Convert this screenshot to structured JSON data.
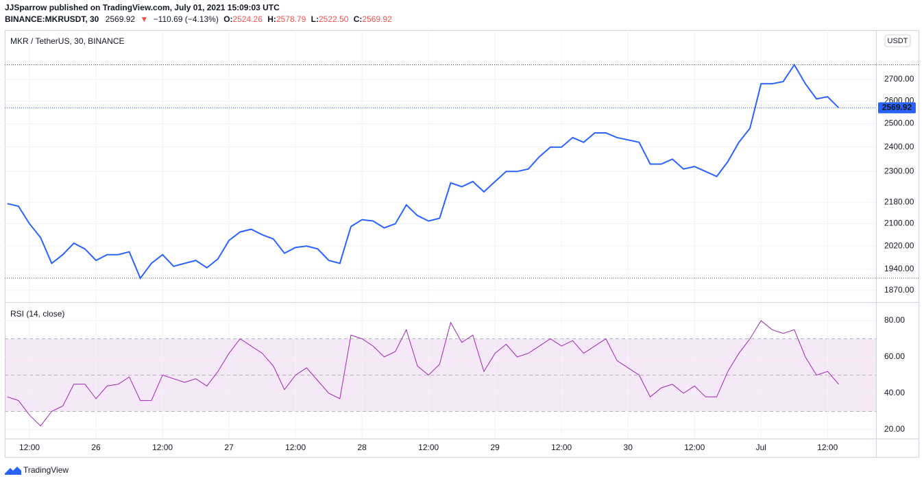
{
  "header": {
    "publisher": "JJSparrow published on TradingView.com, July 01, 2021 15:09:03 UTC",
    "symbol": "BINANCE:MKRUSDT, 30",
    "last": "2569.92",
    "change_arrow": "▼",
    "change": "−110.69 (−4.13%)",
    "open_label": "O:",
    "open": "2524.26",
    "high_label": "H:",
    "high": "2578.79",
    "low_label": "L:",
    "low": "2522.50",
    "close_label": "C:",
    "close": "2569.92"
  },
  "chart_data": [
    {
      "type": "line",
      "title": "MKR / TetherUS, 30, BINANCE",
      "unit": "USDT",
      "color": "#2962ff",
      "log_scale": true,
      "grid": true,
      "values": [
        2175,
        2165,
        2100,
        2050,
        1960,
        1990,
        2030,
        2010,
        1970,
        1990,
        1990,
        2000,
        1910,
        1960,
        1990,
        1950,
        1960,
        1970,
        1945,
        1975,
        2040,
        2070,
        2080,
        2060,
        2045,
        1995,
        2015,
        2020,
        2010,
        1970,
        1960,
        2090,
        2115,
        2110,
        2085,
        2100,
        2170,
        2130,
        2110,
        2120,
        2255,
        2240,
        2260,
        2220,
        2260,
        2300,
        2300,
        2310,
        2360,
        2400,
        2400,
        2440,
        2420,
        2460,
        2460,
        2440,
        2430,
        2420,
        2330,
        2330,
        2350,
        2310,
        2320,
        2300,
        2280,
        2340,
        2420,
        2480,
        2680,
        2680,
        2690,
        2770,
        2680,
        2610,
        2620,
        2569.92
      ],
      "ylim": [
        1832,
        2942
      ],
      "yticks": [
        {
          "value": 1870,
          "label": "1870.00"
        },
        {
          "value": 1940,
          "label": "1940.00"
        },
        {
          "value": 2020,
          "label": "2020.00"
        },
        {
          "value": 2100,
          "label": "2100.00"
        },
        {
          "value": 2180,
          "label": "2180.00"
        },
        {
          "value": 2300,
          "label": "2300.00"
        },
        {
          "value": 2400,
          "label": "2400.00"
        },
        {
          "value": 2500,
          "label": "2500.00"
        },
        {
          "value": 2600,
          "label": "2600.00"
        },
        {
          "value": 2700,
          "label": "2700.00"
        }
      ]
    },
    {
      "type": "line",
      "title": "RSI (14, close)",
      "color": "#9c27b0",
      "grid": true,
      "upper_band": 70,
      "middle_band": 50,
      "lower_band": 30,
      "categories": [
        null,
        null,
        "12:00",
        null,
        null,
        null,
        null,
        null,
        "26",
        null,
        null,
        null,
        null,
        null,
        "12:00",
        null,
        null,
        null,
        null,
        null,
        "27",
        null,
        null,
        null,
        null,
        null,
        "12:00",
        null,
        null,
        null,
        null,
        null,
        "28",
        null,
        null,
        null,
        null,
        null,
        "12:00",
        null,
        null,
        null,
        null,
        null,
        "29",
        null,
        null,
        null,
        null,
        null,
        "12:00",
        null,
        null,
        null,
        null,
        null,
        "30",
        null,
        null,
        null,
        null,
        null,
        "12:00",
        null,
        null,
        null,
        null,
        null,
        "Jul",
        null,
        null,
        null,
        null,
        null,
        "12:00",
        null
      ],
      "values": [
        38,
        36,
        28,
        22,
        30,
        33,
        45,
        45,
        37,
        44,
        45,
        49,
        36,
        36,
        50,
        48,
        46,
        48,
        44,
        52,
        62,
        70,
        66,
        62,
        55,
        42,
        50,
        54,
        47,
        40,
        37,
        72,
        70,
        66,
        60,
        63,
        75,
        55,
        50,
        56,
        79,
        68,
        72,
        52,
        62,
        67,
        60,
        62,
        66,
        70,
        66,
        69,
        62,
        66,
        70,
        58,
        54,
        50,
        38,
        43,
        45,
        40,
        44,
        38,
        38,
        52,
        62,
        70,
        80,
        75,
        73,
        75,
        60,
        50,
        52,
        45
      ],
      "ylim": [
        15.1,
        90.2
      ],
      "yticks": [
        {
          "value": 20,
          "label": "20.00"
        },
        {
          "value": 40,
          "label": "40.00"
        },
        {
          "value": 60,
          "label": "60.00"
        },
        {
          "value": 80,
          "label": "80.00"
        }
      ]
    }
  ],
  "footer": {
    "logo": "TradingView"
  }
}
